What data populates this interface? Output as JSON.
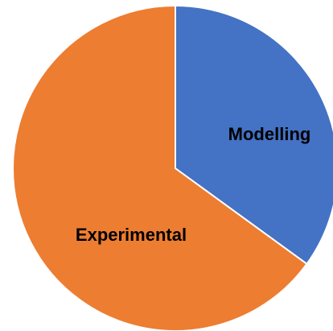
{
  "chart_data": {
    "type": "pie",
    "categories": [
      "Modelling",
      "Experimental"
    ],
    "values": [
      35,
      65
    ],
    "colors": [
      "#4472c4",
      "#ed7d31"
    ]
  }
}
